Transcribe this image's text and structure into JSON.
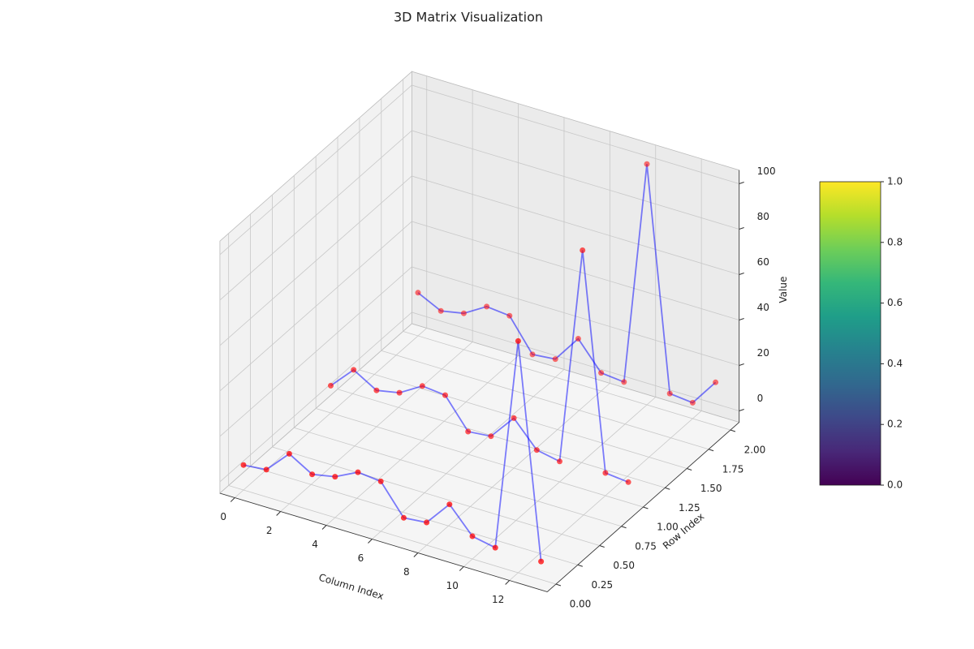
{
  "chart_data": {
    "type": "line3d",
    "title": "3D Matrix Visualization",
    "xlabel": "Column Index",
    "ylabel": "Row Index",
    "zlabel": "Value",
    "x": [
      0,
      1,
      2,
      3,
      4,
      5,
      6,
      7,
      8,
      9,
      10,
      11,
      12,
      13
    ],
    "series": [
      {
        "row": 0,
        "values": [
          6,
          7,
          17,
          11,
          13,
          18,
          17,
          4,
          5,
          16,
          5,
          3,
          97,
          3
        ]
      },
      {
        "row": 1,
        "values": [
          7,
          17,
          11,
          13,
          19,
          18,
          5,
          6,
          17,
          6,
          4,
          100,
          5,
          4
        ]
      },
      {
        "row": 2,
        "values": [
          14,
          9,
          11,
          17,
          16,
          2,
          3,
          15,
          3,
          2,
          101,
          3,
          2,
          14
        ]
      }
    ],
    "line_color": "#0000ff",
    "marker_color": "#ff0000",
    "xlim": [
      -0.65,
      13.65
    ],
    "ylim": [
      -0.1,
      2.1
    ],
    "zlim": [
      -5,
      106
    ],
    "xticks": [
      0,
      2,
      4,
      6,
      8,
      10,
      12
    ],
    "yticks": [
      {
        "value": 0,
        "label": "0.00"
      },
      {
        "value": 0.25,
        "label": "0.25"
      },
      {
        "value": 0.5,
        "label": "0.50"
      },
      {
        "value": 0.75,
        "label": "0.75"
      },
      {
        "value": 1,
        "label": "1.00"
      },
      {
        "value": 1.25,
        "label": "1.25"
      },
      {
        "value": 1.5,
        "label": "1.50"
      },
      {
        "value": 1.75,
        "label": "1.75"
      },
      {
        "value": 2,
        "label": "2.00"
      }
    ],
    "zticks": [
      0,
      20,
      40,
      60,
      80,
      100
    ],
    "grid": true,
    "colorbar": {
      "cmap": "viridis",
      "lim": [
        0,
        1
      ],
      "ticks": [
        {
          "value": 0,
          "label": "0.0"
        },
        {
          "value": 0.2,
          "label": "0.2"
        },
        {
          "value": 0.4,
          "label": "0.4"
        },
        {
          "value": 0.6,
          "label": "0.6"
        },
        {
          "value": 0.8,
          "label": "0.8"
        },
        {
          "value": 1,
          "label": "1.0"
        }
      ]
    }
  }
}
